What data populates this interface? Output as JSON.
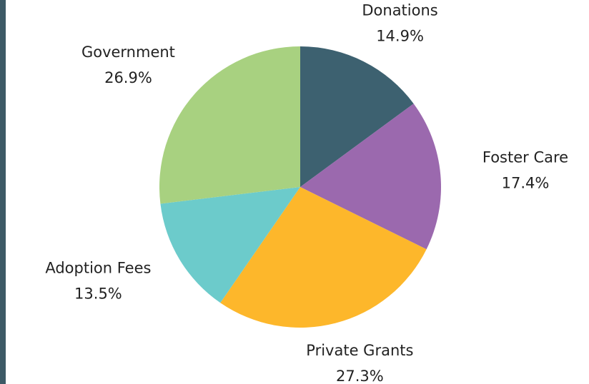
{
  "chart_data": {
    "type": "pie",
    "categories": [
      "Donations",
      "Foster Care",
      "Private Grants",
      "Adoption Fees",
      "Government"
    ],
    "values": [
      14.9,
      17.4,
      27.3,
      13.5,
      26.9
    ],
    "value_labels": [
      "14.9%",
      "17.4%",
      "27.3%",
      "13.5%",
      "26.9%"
    ],
    "colors": [
      "#3d6170",
      "#9b69ae",
      "#fdb72b",
      "#6ccbcb",
      "#a8d180"
    ]
  }
}
